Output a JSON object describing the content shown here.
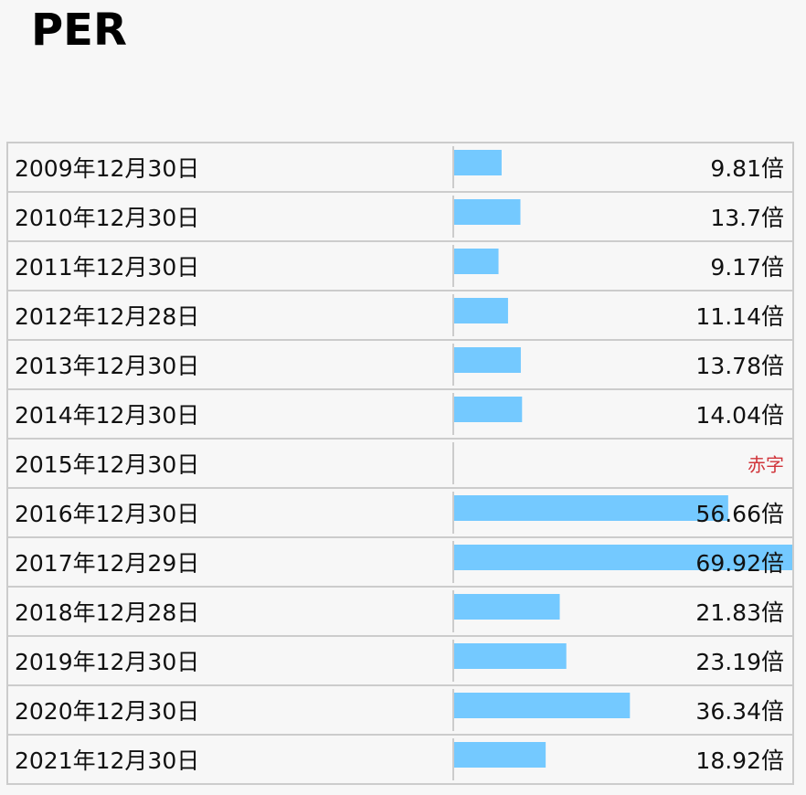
{
  "chart_data": {
    "type": "bar",
    "orientation": "horizontal",
    "title": "PER",
    "categories": [
      "2009年12月30日",
      "2010年12月30日",
      "2011年12月30日",
      "2012年12月28日",
      "2013年12月30日",
      "2014年12月30日",
      "2015年12月30日",
      "2016年12月30日",
      "2017年12月29日",
      "2018年12月28日",
      "2019年12月30日",
      "2020年12月30日",
      "2021年12月30日"
    ],
    "values": [
      9.81,
      13.7,
      9.17,
      11.14,
      13.78,
      14.04,
      null,
      56.66,
      69.92,
      21.83,
      23.19,
      36.34,
      18.92
    ],
    "value_labels": [
      "9.81倍",
      "13.7倍",
      "9.17倍",
      "11.14倍",
      "13.78倍",
      "14.04倍",
      "赤字",
      "56.66倍",
      "69.92倍",
      "21.83倍",
      "23.19倍",
      "36.34倍",
      "18.92倍"
    ],
    "color": "#74c9ff",
    "null_label_color": "#d0343a"
  }
}
